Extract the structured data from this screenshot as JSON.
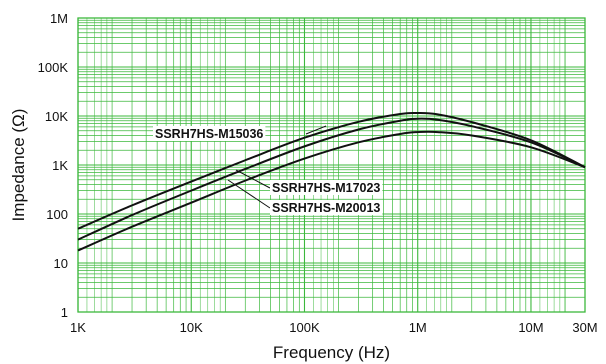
{
  "chart_data": {
    "type": "line",
    "title": "",
    "xlabel": "Frequency (Hz)",
    "ylabel": "Impedance (Ω)",
    "x_scale": "log",
    "y_scale": "log",
    "xlim": [
      1000,
      30000000
    ],
    "ylim": [
      1,
      1000000
    ],
    "grid": true,
    "grid_color": "#3cb83c",
    "line_color": "#111111",
    "x_ticks": [
      {
        "value": 1000,
        "label": "1K"
      },
      {
        "value": 10000,
        "label": "10K"
      },
      {
        "value": 100000,
        "label": "100K"
      },
      {
        "value": 1000000,
        "label": "1M"
      },
      {
        "value": 10000000,
        "label": "10M"
      },
      {
        "value": 30000000,
        "label": "30M"
      }
    ],
    "y_ticks": [
      {
        "value": 1,
        "label": "1"
      },
      {
        "value": 10,
        "label": "10"
      },
      {
        "value": 100,
        "label": "100"
      },
      {
        "value": 1000,
        "label": "1K"
      },
      {
        "value": 10000,
        "label": "10K"
      },
      {
        "value": 100000,
        "label": "100K"
      },
      {
        "value": 1000000,
        "label": "1M"
      }
    ],
    "series": [
      {
        "name": "SSRH7HS-M15036",
        "points": [
          [
            1000,
            50
          ],
          [
            3000,
            150
          ],
          [
            10000,
            460
          ],
          [
            30000,
            1250
          ],
          [
            100000,
            3600
          ],
          [
            300000,
            7600
          ],
          [
            700000,
            11000
          ],
          [
            1000000,
            11500
          ],
          [
            1500000,
            10800
          ],
          [
            3000000,
            7500
          ],
          [
            10000000,
            3200
          ],
          [
            30000000,
            900
          ]
        ]
      },
      {
        "name": "SSRH7HS-M17023",
        "points": [
          [
            1000,
            30
          ],
          [
            3000,
            95
          ],
          [
            10000,
            300
          ],
          [
            30000,
            830
          ],
          [
            100000,
            2400
          ],
          [
            300000,
            5300
          ],
          [
            700000,
            8000
          ],
          [
            1000000,
            8800
          ],
          [
            1500000,
            8400
          ],
          [
            3000000,
            6200
          ],
          [
            10000000,
            2900
          ],
          [
            30000000,
            900
          ]
        ]
      },
      {
        "name": "SSRH7HS-M20013",
        "points": [
          [
            1000,
            18
          ],
          [
            3000,
            55
          ],
          [
            10000,
            170
          ],
          [
            30000,
            480
          ],
          [
            100000,
            1350
          ],
          [
            300000,
            2900
          ],
          [
            700000,
            4300
          ],
          [
            1000000,
            4700
          ],
          [
            1500000,
            4700
          ],
          [
            3000000,
            4000
          ],
          [
            10000000,
            2300
          ],
          [
            30000000,
            900
          ]
        ]
      }
    ]
  }
}
